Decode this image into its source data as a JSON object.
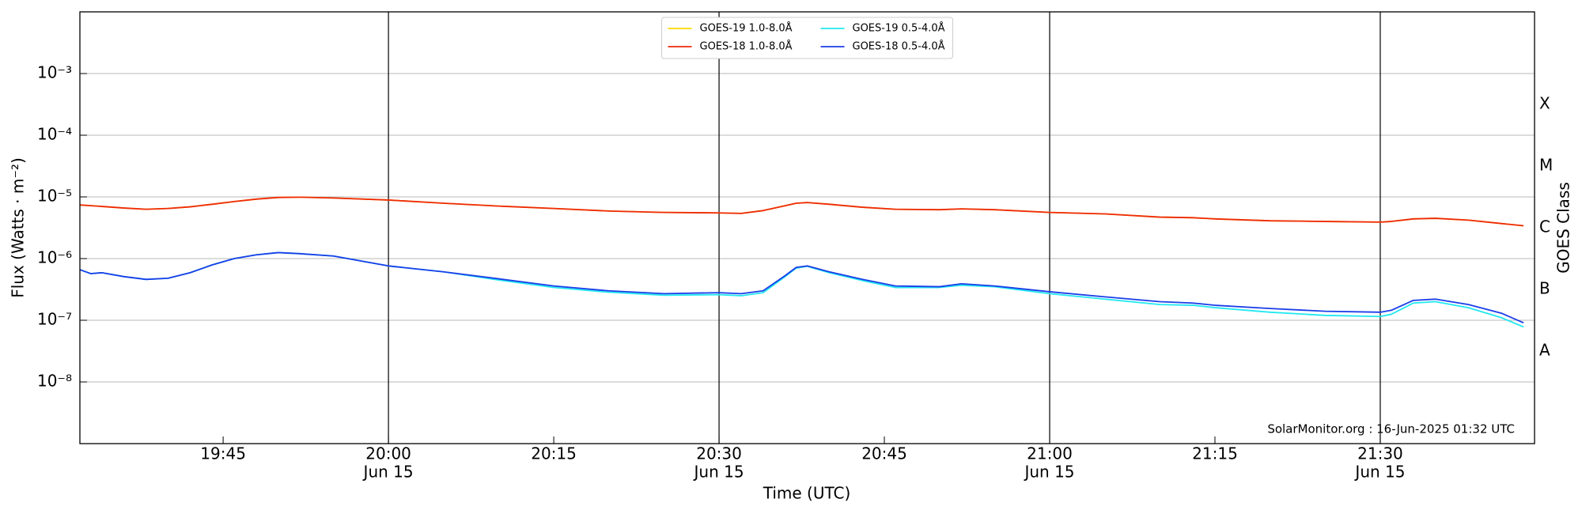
{
  "chart_data": {
    "type": "line",
    "xlabel": "Time (UTC)",
    "ylabel": "Flux (Watts · m⁻²)",
    "y2label": "GOES Class",
    "annotation": "SolarMonitor.org : 16-Jun-2025 01:32 UTC",
    "log_y": true,
    "grid": true,
    "legend": "upper center",
    "legend_columns": 2,
    "xlim": [
      "19:32",
      "21:44"
    ],
    "xticks": [
      "19:45",
      "20:00",
      "20:15",
      "20:30",
      "20:45",
      "21:00",
      "21:15",
      "21:30"
    ],
    "xtick_dates": [
      null,
      "Jun 15",
      null,
      "Jun 15",
      null,
      "Jun 15",
      null,
      "Jun 15"
    ],
    "ylim": [
      1e-09,
      0.01
    ],
    "yticks": [
      {
        "value": 1e-08,
        "label": "10⁻⁸"
      },
      {
        "value": 1e-07,
        "label": "10⁻⁷"
      },
      {
        "value": 1e-06,
        "label": "10⁻⁶"
      },
      {
        "value": 1e-05,
        "label": "10⁻⁵"
      },
      {
        "value": 0.0001,
        "label": "10⁻⁴"
      },
      {
        "value": 0.001,
        "label": "10⁻³"
      }
    ],
    "class_labels": [
      "A",
      "B",
      "C",
      "M",
      "X"
    ],
    "class_bounds": [
      1e-08,
      1e-07,
      1e-06,
      1e-05,
      0.0001,
      0.001
    ],
    "x": [
      "19:32",
      "19:33",
      "19:34",
      "19:36",
      "19:38",
      "19:40",
      "19:42",
      "19:44",
      "19:46",
      "19:48",
      "19:50",
      "19:52",
      "19:55",
      "20:00",
      "20:05",
      "20:10",
      "20:15",
      "20:20",
      "20:25",
      "20:30",
      "20:32",
      "20:34",
      "20:36",
      "20:37",
      "20:38",
      "20:40",
      "20:43",
      "20:46",
      "20:50",
      "20:52",
      "20:55",
      "21:00",
      "21:05",
      "21:10",
      "21:13",
      "21:15",
      "21:20",
      "21:25",
      "21:30",
      "21:31",
      "21:33",
      "21:35",
      "21:38",
      "21:41",
      "21:43"
    ],
    "series": [
      {
        "name": "GOES-19 1.0-8.0Å",
        "color": "#ffd700",
        "values": [
          7.4e-06,
          7.2e-06,
          7e-06,
          6.6e-06,
          6.3e-06,
          6.5e-06,
          6.9e-06,
          7.6e-06,
          8.4e-06,
          9.2e-06,
          9.8e-06,
          9.9e-06,
          9.6e-06,
          8.9e-06,
          7.9e-06,
          7.1e-06,
          6.5e-06,
          5.9e-06,
          5.6e-06,
          5.5e-06,
          5.4e-06,
          6e-06,
          7.2e-06,
          7.9e-06,
          8.1e-06,
          7.6e-06,
          6.8e-06,
          6.3e-06,
          6.2e-06,
          6.4e-06,
          6.2e-06,
          5.6e-06,
          5.3e-06,
          4.7e-06,
          4.6e-06,
          4.4e-06,
          4.1e-06,
          4e-06,
          3.9e-06,
          4e-06,
          4.4e-06,
          4.5e-06,
          4.2e-06,
          3.7e-06,
          3.4e-06
        ]
      },
      {
        "name": "GOES-18 1.0-8.0Å",
        "color": "#ee2a0c",
        "values": [
          7.4e-06,
          7.2e-06,
          7e-06,
          6.6e-06,
          6.3e-06,
          6.5e-06,
          6.9e-06,
          7.6e-06,
          8.4e-06,
          9.2e-06,
          9.8e-06,
          9.9e-06,
          9.6e-06,
          8.9e-06,
          7.9e-06,
          7.1e-06,
          6.5e-06,
          5.9e-06,
          5.6e-06,
          5.5e-06,
          5.4e-06,
          6e-06,
          7.2e-06,
          7.9e-06,
          8.1e-06,
          7.6e-06,
          6.8e-06,
          6.3e-06,
          6.2e-06,
          6.4e-06,
          6.2e-06,
          5.6e-06,
          5.3e-06,
          4.7e-06,
          4.6e-06,
          4.4e-06,
          4.1e-06,
          4e-06,
          3.9e-06,
          4e-06,
          4.4e-06,
          4.5e-06,
          4.2e-06,
          3.7e-06,
          3.4e-06
        ]
      },
      {
        "name": "GOES-19 0.5-4.0Å",
        "color": "#22e8f0",
        "values": [
          6.6e-07,
          5.7e-07,
          5.9e-07,
          5.1e-07,
          4.6e-07,
          4.8e-07,
          5.9e-07,
          7.9e-07,
          1e-06,
          1.15e-06,
          1.25e-06,
          1.2e-06,
          1.1e-06,
          7.6e-07,
          6.1e-07,
          4.5e-07,
          3.4e-07,
          2.85e-07,
          2.55e-07,
          2.6e-07,
          2.5e-07,
          2.8e-07,
          5.1e-07,
          7e-07,
          7.5e-07,
          5.9e-07,
          4.4e-07,
          3.4e-07,
          3.4e-07,
          3.7e-07,
          3.5e-07,
          2.7e-07,
          2.2e-07,
          1.8e-07,
          1.75e-07,
          1.6e-07,
          1.35e-07,
          1.2e-07,
          1.15e-07,
          1.25e-07,
          1.9e-07,
          2e-07,
          1.6e-07,
          1.1e-07,
          7.8e-08
        ]
      },
      {
        "name": "GOES-18 0.5-4.0Å",
        "color": "#1a3ee8",
        "values": [
          6.6e-07,
          5.7e-07,
          5.9e-07,
          5.1e-07,
          4.6e-07,
          4.8e-07,
          5.9e-07,
          7.9e-07,
          1e-06,
          1.15e-06,
          1.25e-06,
          1.2e-06,
          1.1e-06,
          7.6e-07,
          6.1e-07,
          4.7e-07,
          3.6e-07,
          3e-07,
          2.7e-07,
          2.8e-07,
          2.7e-07,
          3e-07,
          5.3e-07,
          7.2e-07,
          7.6e-07,
          6.1e-07,
          4.6e-07,
          3.6e-07,
          3.5e-07,
          3.9e-07,
          3.6e-07,
          2.9e-07,
          2.4e-07,
          2e-07,
          1.9e-07,
          1.75e-07,
          1.55e-07,
          1.4e-07,
          1.35e-07,
          1.45e-07,
          2.1e-07,
          2.2e-07,
          1.8e-07,
          1.3e-07,
          9.1e-08
        ]
      }
    ]
  }
}
